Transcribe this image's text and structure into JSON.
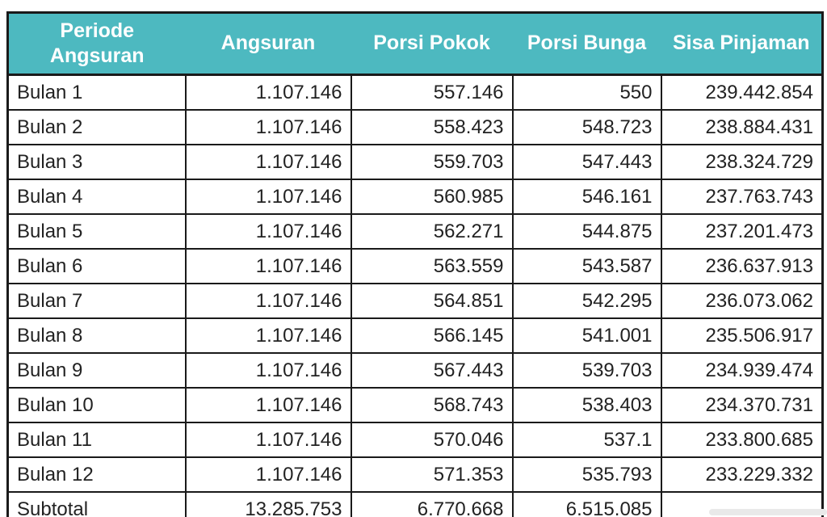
{
  "table": {
    "columns": [
      "Periode Angsuran",
      "Angsuran",
      "Porsi Pokok",
      "Porsi Bunga",
      "Sisa Pinjaman"
    ],
    "rows": [
      {
        "periode": "Bulan 1",
        "angsuran": "1.107.146",
        "porsi_pokok": "557.146",
        "porsi_bunga": "550",
        "sisa_pinjaman": "239.442.854"
      },
      {
        "periode": "Bulan 2",
        "angsuran": "1.107.146",
        "porsi_pokok": "558.423",
        "porsi_bunga": "548.723",
        "sisa_pinjaman": "238.884.431"
      },
      {
        "periode": "Bulan 3",
        "angsuran": "1.107.146",
        "porsi_pokok": "559.703",
        "porsi_bunga": "547.443",
        "sisa_pinjaman": "238.324.729"
      },
      {
        "periode": "Bulan 4",
        "angsuran": "1.107.146",
        "porsi_pokok": "560.985",
        "porsi_bunga": "546.161",
        "sisa_pinjaman": "237.763.743"
      },
      {
        "periode": "Bulan 5",
        "angsuran": "1.107.146",
        "porsi_pokok": "562.271",
        "porsi_bunga": "544.875",
        "sisa_pinjaman": "237.201.473"
      },
      {
        "periode": "Bulan 6",
        "angsuran": "1.107.146",
        "porsi_pokok": "563.559",
        "porsi_bunga": "543.587",
        "sisa_pinjaman": "236.637.913"
      },
      {
        "periode": "Bulan 7",
        "angsuran": "1.107.146",
        "porsi_pokok": "564.851",
        "porsi_bunga": "542.295",
        "sisa_pinjaman": "236.073.062"
      },
      {
        "periode": "Bulan 8",
        "angsuran": "1.107.146",
        "porsi_pokok": "566.145",
        "porsi_bunga": "541.001",
        "sisa_pinjaman": "235.506.917"
      },
      {
        "periode": "Bulan 9",
        "angsuran": "1.107.146",
        "porsi_pokok": "567.443",
        "porsi_bunga": "539.703",
        "sisa_pinjaman": "234.939.474"
      },
      {
        "periode": "Bulan 10",
        "angsuran": "1.107.146",
        "porsi_pokok": "568.743",
        "porsi_bunga": "538.403",
        "sisa_pinjaman": "234.370.731"
      },
      {
        "periode": "Bulan 11",
        "angsuran": "1.107.146",
        "porsi_pokok": "570.046",
        "porsi_bunga": "537.1",
        "sisa_pinjaman": "233.800.685"
      },
      {
        "periode": "Bulan 12",
        "angsuran": "1.107.146",
        "porsi_pokok": "571.353",
        "porsi_bunga": "535.793",
        "sisa_pinjaman": "233.229.332"
      },
      {
        "periode": "Subtotal",
        "angsuran": "13.285.753",
        "porsi_pokok": "6.770.668",
        "porsi_bunga": "6.515.085",
        "sisa_pinjaman": "-"
      }
    ],
    "colors": {
      "header_bg": "#4db9c0",
      "header_text": "#ffffff",
      "border": "#1a1a1a",
      "body_text": "#222222"
    }
  }
}
